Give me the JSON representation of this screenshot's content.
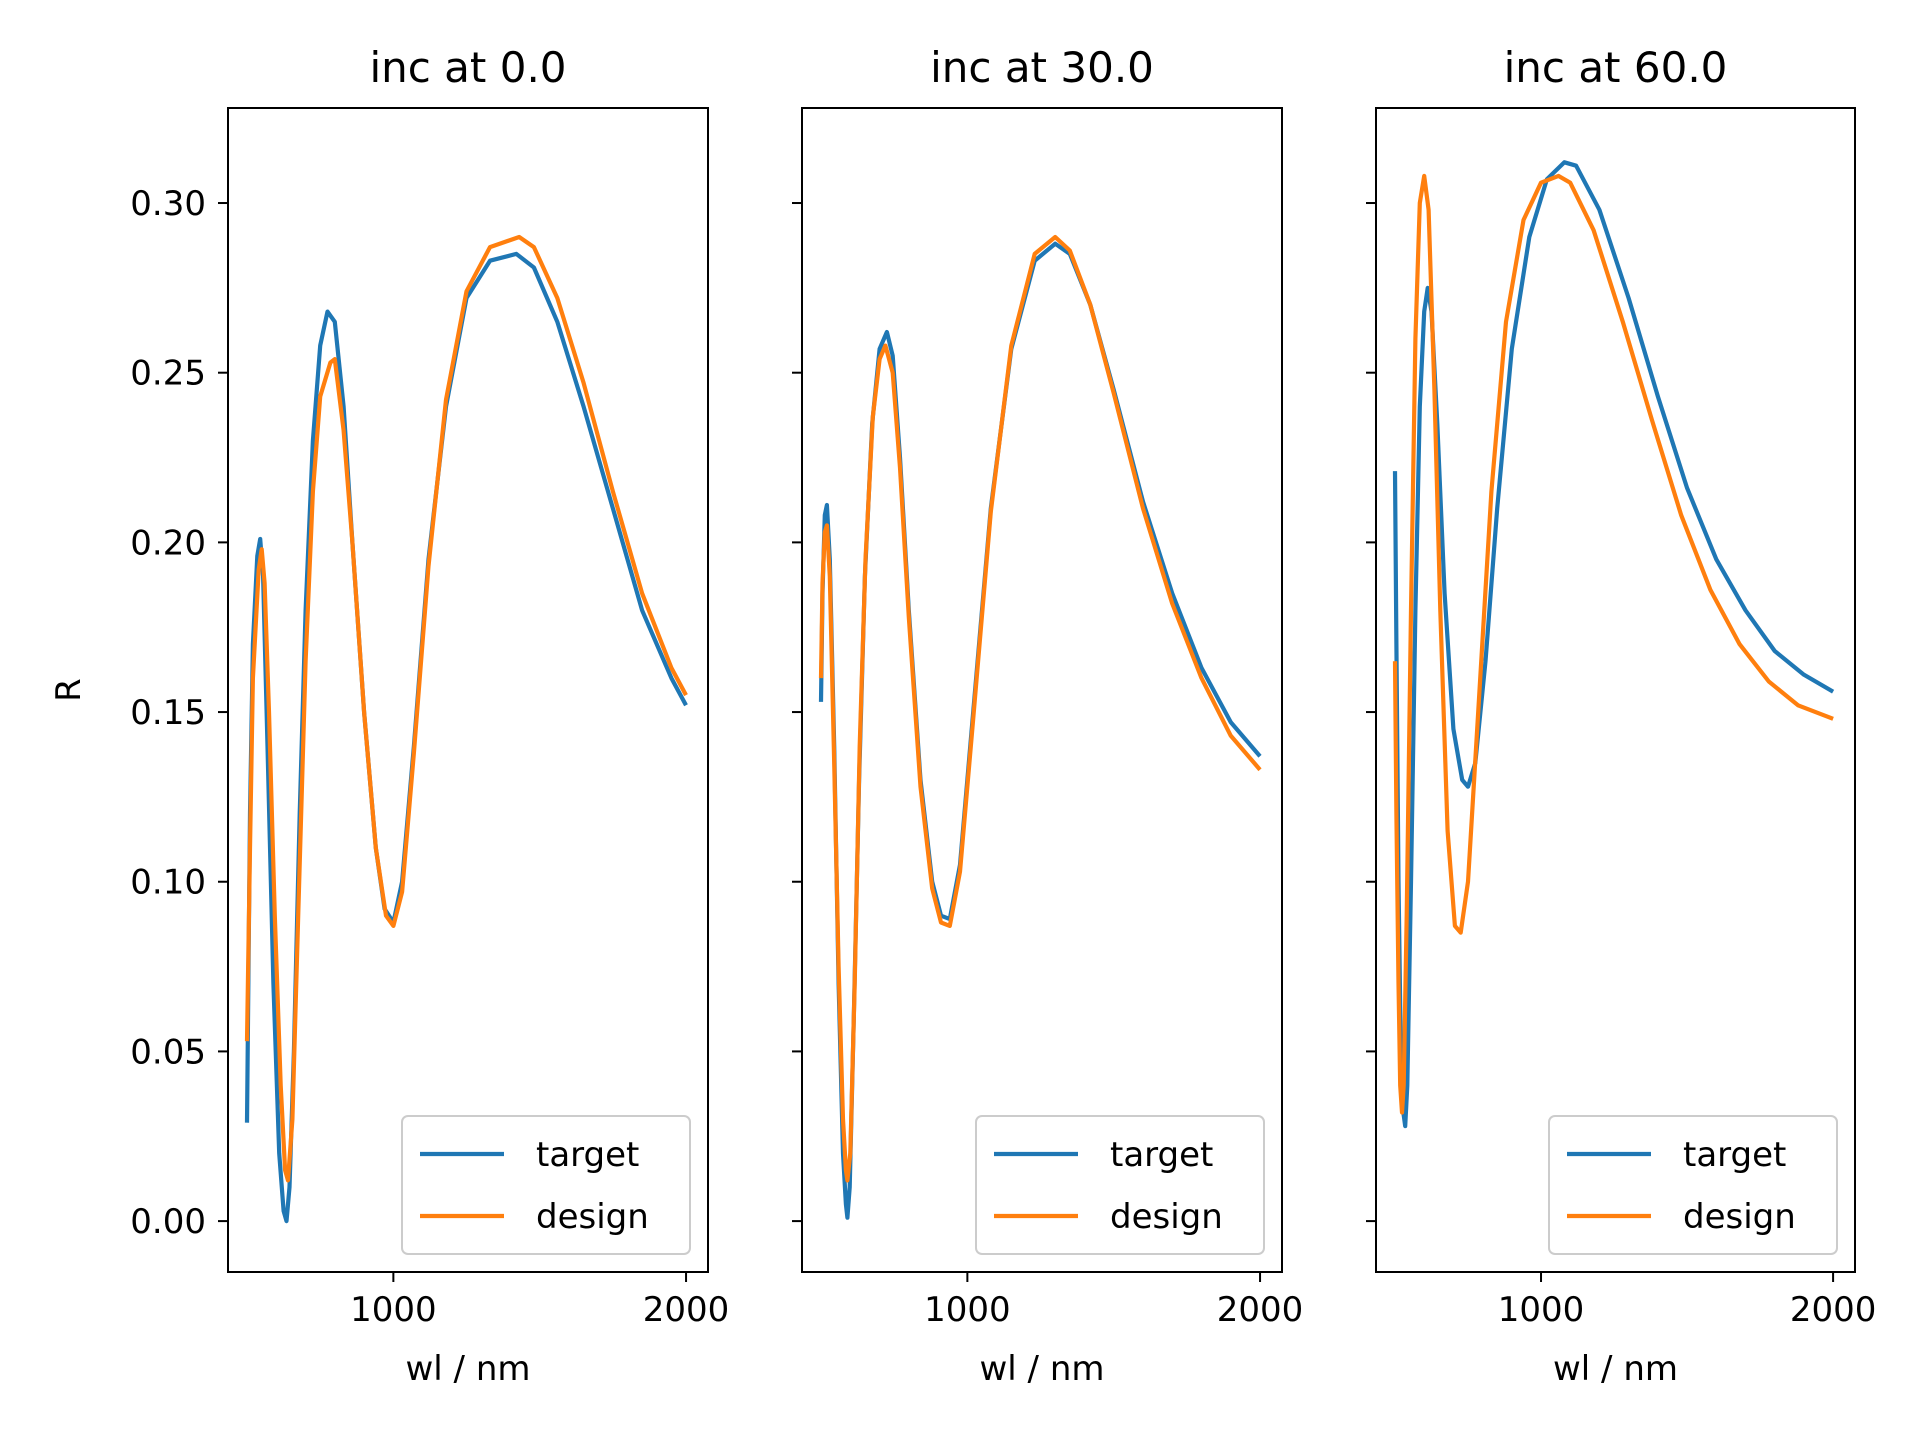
{
  "chart_data": [
    {
      "type": "line",
      "title": "inc at 0.0",
      "xlabel": "wl / nm",
      "ylabel": "R",
      "xlim": [
        435,
        2075
      ],
      "ylim": [
        -0.015,
        0.328
      ],
      "xticks": [
        1000,
        2000
      ],
      "xtick_labels": [
        "1000",
        "2000"
      ],
      "yticks": [
        0.0,
        0.05,
        0.1,
        0.15,
        0.2,
        0.25,
        0.3
      ],
      "ytick_labels": [
        "0.00",
        "0.05",
        "0.10",
        "0.15",
        "0.20",
        "0.25",
        "0.30"
      ],
      "show_yticklabels": true,
      "grid": false,
      "legend_position": "lower right",
      "series": [
        {
          "name": "target",
          "color": "#1f77b4",
          "points": [
            [
              500,
              0.029
            ],
            [
              510,
              0.12
            ],
            [
              520,
              0.17
            ],
            [
              535,
              0.196
            ],
            [
              545,
              0.201
            ],
            [
              555,
              0.19
            ],
            [
              570,
              0.14
            ],
            [
              590,
              0.07
            ],
            [
              610,
              0.02
            ],
            [
              625,
              0.003
            ],
            [
              635,
              0.0
            ],
            [
              645,
              0.01
            ],
            [
              660,
              0.05
            ],
            [
              680,
              0.12
            ],
            [
              700,
              0.18
            ],
            [
              725,
              0.23
            ],
            [
              750,
              0.258
            ],
            [
              775,
              0.268
            ],
            [
              800,
              0.265
            ],
            [
              830,
              0.24
            ],
            [
              860,
              0.2
            ],
            [
              900,
              0.15
            ],
            [
              940,
              0.11
            ],
            [
              970,
              0.092
            ],
            [
              1000,
              0.088
            ],
            [
              1030,
              0.1
            ],
            [
              1070,
              0.14
            ],
            [
              1120,
              0.195
            ],
            [
              1180,
              0.24
            ],
            [
              1250,
              0.272
            ],
            [
              1330,
              0.283
            ],
            [
              1420,
              0.285
            ],
            [
              1480,
              0.281
            ],
            [
              1560,
              0.265
            ],
            [
              1650,
              0.24
            ],
            [
              1750,
              0.21
            ],
            [
              1850,
              0.18
            ],
            [
              1950,
              0.16
            ],
            [
              2000,
              0.152
            ]
          ]
        },
        {
          "name": "design",
          "color": "#ff7f0e",
          "points": [
            [
              500,
              0.053
            ],
            [
              510,
              0.11
            ],
            [
              520,
              0.16
            ],
            [
              540,
              0.192
            ],
            [
              550,
              0.198
            ],
            [
              560,
              0.188
            ],
            [
              575,
              0.15
            ],
            [
              595,
              0.09
            ],
            [
              615,
              0.04
            ],
            [
              630,
              0.015
            ],
            [
              640,
              0.012
            ],
            [
              655,
              0.03
            ],
            [
              675,
              0.09
            ],
            [
              700,
              0.165
            ],
            [
              725,
              0.215
            ],
            [
              750,
              0.243
            ],
            [
              785,
              0.253
            ],
            [
              800,
              0.254
            ],
            [
              830,
              0.233
            ],
            [
              860,
              0.2
            ],
            [
              900,
              0.15
            ],
            [
              940,
              0.11
            ],
            [
              975,
              0.09
            ],
            [
              1000,
              0.087
            ],
            [
              1030,
              0.097
            ],
            [
              1070,
              0.138
            ],
            [
              1120,
              0.193
            ],
            [
              1180,
              0.242
            ],
            [
              1250,
              0.274
            ],
            [
              1330,
              0.287
            ],
            [
              1430,
              0.29
            ],
            [
              1480,
              0.287
            ],
            [
              1560,
              0.272
            ],
            [
              1650,
              0.247
            ],
            [
              1750,
              0.215
            ],
            [
              1850,
              0.185
            ],
            [
              1950,
              0.163
            ],
            [
              2000,
              0.155
            ]
          ]
        }
      ]
    },
    {
      "type": "line",
      "title": "inc at 30.0",
      "xlabel": "wl / nm",
      "ylabel": "",
      "xlim": [
        435,
        2075
      ],
      "ylim": [
        -0.015,
        0.328
      ],
      "xticks": [
        1000,
        2000
      ],
      "xtick_labels": [
        "1000",
        "2000"
      ],
      "yticks": [
        0.0,
        0.05,
        0.1,
        0.15,
        0.2,
        0.25,
        0.3
      ],
      "ytick_labels": [],
      "show_yticklabels": false,
      "grid": false,
      "legend_position": "lower right",
      "series": [
        {
          "name": "target",
          "color": "#1f77b4",
          "points": [
            [
              500,
              0.153
            ],
            [
              505,
              0.185
            ],
            [
              513,
              0.208
            ],
            [
              520,
              0.211
            ],
            [
              530,
              0.195
            ],
            [
              545,
              0.14
            ],
            [
              560,
              0.07
            ],
            [
              575,
              0.02
            ],
            [
              585,
              0.005
            ],
            [
              590,
              0.001
            ],
            [
              598,
              0.01
            ],
            [
              612,
              0.06
            ],
            [
              630,
              0.13
            ],
            [
              650,
              0.19
            ],
            [
              675,
              0.235
            ],
            [
              700,
              0.257
            ],
            [
              725,
              0.262
            ],
            [
              745,
              0.255
            ],
            [
              770,
              0.225
            ],
            [
              800,
              0.18
            ],
            [
              840,
              0.13
            ],
            [
              880,
              0.1
            ],
            [
              910,
              0.09
            ],
            [
              940,
              0.089
            ],
            [
              975,
              0.105
            ],
            [
              1020,
              0.15
            ],
            [
              1080,
              0.21
            ],
            [
              1150,
              0.257
            ],
            [
              1230,
              0.283
            ],
            [
              1300,
              0.288
            ],
            [
              1350,
              0.285
            ],
            [
              1420,
              0.27
            ],
            [
              1500,
              0.245
            ],
            [
              1600,
              0.212
            ],
            [
              1700,
              0.185
            ],
            [
              1800,
              0.163
            ],
            [
              1900,
              0.147
            ],
            [
              2000,
              0.137
            ]
          ]
        },
        {
          "name": "design",
          "color": "#ff7f0e",
          "points": [
            [
              500,
              0.16
            ],
            [
              505,
              0.188
            ],
            [
              513,
              0.203
            ],
            [
              520,
              0.205
            ],
            [
              530,
              0.19
            ],
            [
              545,
              0.135
            ],
            [
              560,
              0.075
            ],
            [
              575,
              0.03
            ],
            [
              585,
              0.015
            ],
            [
              590,
              0.012
            ],
            [
              600,
              0.02
            ],
            [
              615,
              0.07
            ],
            [
              632,
              0.14
            ],
            [
              652,
              0.195
            ],
            [
              677,
              0.237
            ],
            [
              700,
              0.254
            ],
            [
              720,
              0.258
            ],
            [
              745,
              0.25
            ],
            [
              770,
              0.222
            ],
            [
              800,
              0.178
            ],
            [
              840,
              0.128
            ],
            [
              880,
              0.098
            ],
            [
              910,
              0.088
            ],
            [
              940,
              0.087
            ],
            [
              975,
              0.103
            ],
            [
              1020,
              0.148
            ],
            [
              1080,
              0.209
            ],
            [
              1150,
              0.258
            ],
            [
              1230,
              0.285
            ],
            [
              1300,
              0.29
            ],
            [
              1350,
              0.286
            ],
            [
              1420,
              0.27
            ],
            [
              1500,
              0.244
            ],
            [
              1600,
              0.21
            ],
            [
              1700,
              0.182
            ],
            [
              1800,
              0.16
            ],
            [
              1900,
              0.143
            ],
            [
              2000,
              0.133
            ]
          ]
        }
      ]
    },
    {
      "type": "line",
      "title": "inc at 60.0",
      "xlabel": "wl / nm",
      "ylabel": "",
      "xlim": [
        435,
        2075
      ],
      "ylim": [
        -0.015,
        0.328
      ],
      "xticks": [
        1000,
        2000
      ],
      "xtick_labels": [
        "1000",
        "2000"
      ],
      "yticks": [
        0.0,
        0.05,
        0.1,
        0.15,
        0.2,
        0.25,
        0.3
      ],
      "ytick_labels": [],
      "show_yticklabels": false,
      "grid": false,
      "legend_position": "lower right",
      "series": [
        {
          "name": "target",
          "color": "#1f77b4",
          "points": [
            [
              500,
              0.221
            ],
            [
              505,
              0.17
            ],
            [
              512,
              0.1
            ],
            [
              520,
              0.05
            ],
            [
              527,
              0.033
            ],
            [
              535,
              0.028
            ],
            [
              542,
              0.04
            ],
            [
              555,
              0.1
            ],
            [
              570,
              0.18
            ],
            [
              585,
              0.24
            ],
            [
              600,
              0.268
            ],
            [
              612,
              0.275
            ],
            [
              625,
              0.268
            ],
            [
              645,
              0.235
            ],
            [
              670,
              0.185
            ],
            [
              700,
              0.145
            ],
            [
              730,
              0.13
            ],
            [
              750,
              0.128
            ],
            [
              775,
              0.135
            ],
            [
              810,
              0.165
            ],
            [
              850,
              0.21
            ],
            [
              900,
              0.257
            ],
            [
              960,
              0.29
            ],
            [
              1020,
              0.307
            ],
            [
              1080,
              0.312
            ],
            [
              1120,
              0.311
            ],
            [
              1200,
              0.298
            ],
            [
              1300,
              0.272
            ],
            [
              1400,
              0.243
            ],
            [
              1500,
              0.216
            ],
            [
              1600,
              0.195
            ],
            [
              1700,
              0.18
            ],
            [
              1800,
              0.168
            ],
            [
              1900,
              0.161
            ],
            [
              2000,
              0.156
            ]
          ]
        },
        {
          "name": "design",
          "color": "#ff7f0e",
          "points": [
            [
              500,
              0.165
            ],
            [
              505,
              0.12
            ],
            [
              512,
              0.07
            ],
            [
              518,
              0.04
            ],
            [
              524,
              0.032
            ],
            [
              530,
              0.04
            ],
            [
              540,
              0.09
            ],
            [
              555,
              0.18
            ],
            [
              570,
              0.26
            ],
            [
              585,
              0.3
            ],
            [
              600,
              0.308
            ],
            [
              615,
              0.298
            ],
            [
              635,
              0.245
            ],
            [
              655,
              0.18
            ],
            [
              680,
              0.115
            ],
            [
              705,
              0.087
            ],
            [
              725,
              0.085
            ],
            [
              750,
              0.1
            ],
            [
              785,
              0.15
            ],
            [
              830,
              0.215
            ],
            [
              880,
              0.265
            ],
            [
              940,
              0.295
            ],
            [
              1000,
              0.306
            ],
            [
              1060,
              0.308
            ],
            [
              1100,
              0.306
            ],
            [
              1180,
              0.292
            ],
            [
              1280,
              0.265
            ],
            [
              1380,
              0.236
            ],
            [
              1480,
              0.208
            ],
            [
              1580,
              0.186
            ],
            [
              1680,
              0.17
            ],
            [
              1780,
              0.159
            ],
            [
              1880,
              0.152
            ],
            [
              2000,
              0.148
            ]
          ]
        }
      ]
    }
  ]
}
